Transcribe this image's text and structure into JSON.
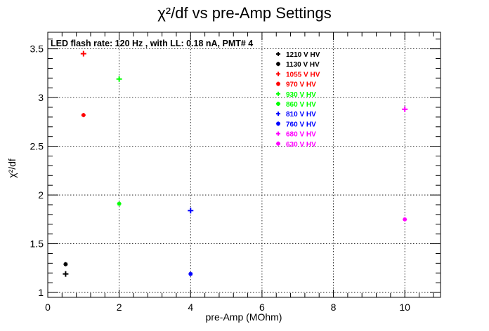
{
  "chart_data": {
    "type": "scatter",
    "title": "χ²/df vs pre-Amp Settings",
    "xlabel": "pre-Amp (MOhm)",
    "ylabel": "χ²/df",
    "xlim": [
      0,
      11
    ],
    "ylim": [
      0.95,
      3.67
    ],
    "x_ticks": [
      0,
      2,
      4,
      6,
      8,
      10
    ],
    "y_ticks": [
      1,
      1.5,
      2,
      2.5,
      3,
      3.5
    ],
    "grid": true,
    "annotation": "LED flash rate: 120 Hz , with LL: 0.18 nA, PMT# 4",
    "legend_position": "top-right inside",
    "series": [
      {
        "name": "1210 V HV",
        "color": "#000000",
        "marker": "plus",
        "points": [
          [
            0.5,
            1.19
          ]
        ]
      },
      {
        "name": "1130 V HV",
        "color": "#000000",
        "marker": "star",
        "points": [
          [
            0.5,
            1.29
          ]
        ]
      },
      {
        "name": "1055 V HV",
        "color": "#ff0000",
        "marker": "plus",
        "points": [
          [
            1,
            3.45
          ]
        ]
      },
      {
        "name": "970 V HV",
        "color": "#ff0000",
        "marker": "star",
        "points": [
          [
            1,
            2.82
          ]
        ]
      },
      {
        "name": "930 V HV",
        "color": "#00ff00",
        "marker": "plus",
        "points": [
          [
            2,
            3.19
          ]
        ]
      },
      {
        "name": "860 V HV",
        "color": "#00ff00",
        "marker": "star",
        "points": [
          [
            2,
            1.91
          ]
        ]
      },
      {
        "name": "810 V HV",
        "color": "#0000ff",
        "marker": "plus",
        "points": [
          [
            4,
            1.84
          ]
        ]
      },
      {
        "name": "760 V HV",
        "color": "#0000ff",
        "marker": "star",
        "points": [
          [
            4,
            1.19
          ]
        ]
      },
      {
        "name": "680 V HV",
        "color": "#ff00ff",
        "marker": "plus",
        "points": [
          [
            10,
            2.88
          ]
        ]
      },
      {
        "name": "630 V HV",
        "color": "#ff00ff",
        "marker": "star",
        "points": [
          [
            10,
            1.75
          ]
        ]
      }
    ]
  }
}
